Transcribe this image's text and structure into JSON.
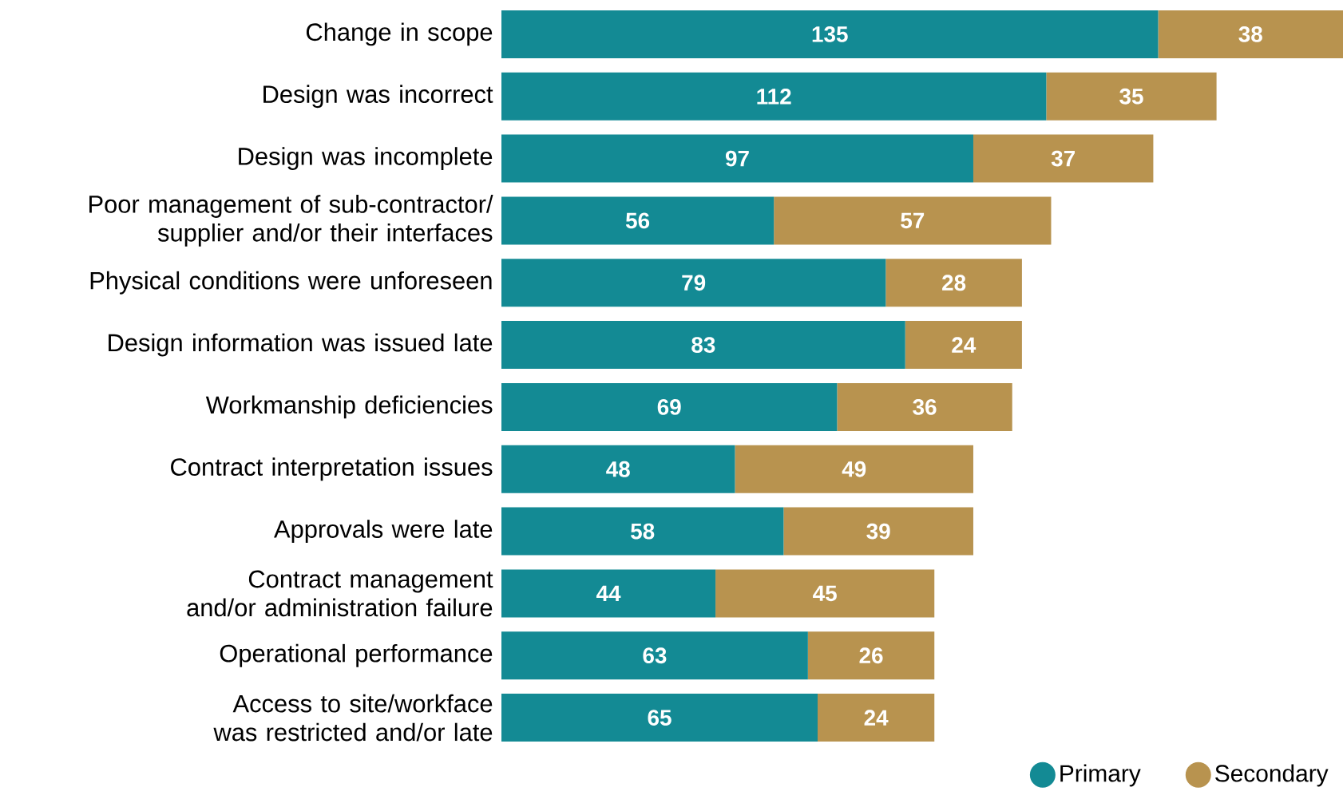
{
  "chart_data": {
    "type": "bar",
    "orientation": "horizontal",
    "stacked": true,
    "data_labels": true,
    "legend": "bottom right",
    "categories": [
      "Change in scope",
      "Design was incorrect",
      "Design was incomplete",
      "Poor management of sub-contractor/ supplier and/or their interfaces",
      "Physical conditions were unforeseen",
      "Design information was issued late",
      "Workmanship deficiencies",
      "Contract interpretation issues",
      "Approvals were late",
      "Contract management and/or administration failure",
      "Operational performance",
      "Access to site/workface was restricted and/or late"
    ],
    "series": [
      {
        "name": "Primary",
        "color": "#138a94",
        "values": [
          135,
          112,
          97,
          56,
          79,
          83,
          69,
          48,
          58,
          44,
          63,
          65
        ]
      },
      {
        "name": "Secondary",
        "color": "#b8934f",
        "values": [
          38,
          35,
          37,
          57,
          28,
          24,
          36,
          49,
          39,
          45,
          26,
          24
        ]
      }
    ]
  }
}
